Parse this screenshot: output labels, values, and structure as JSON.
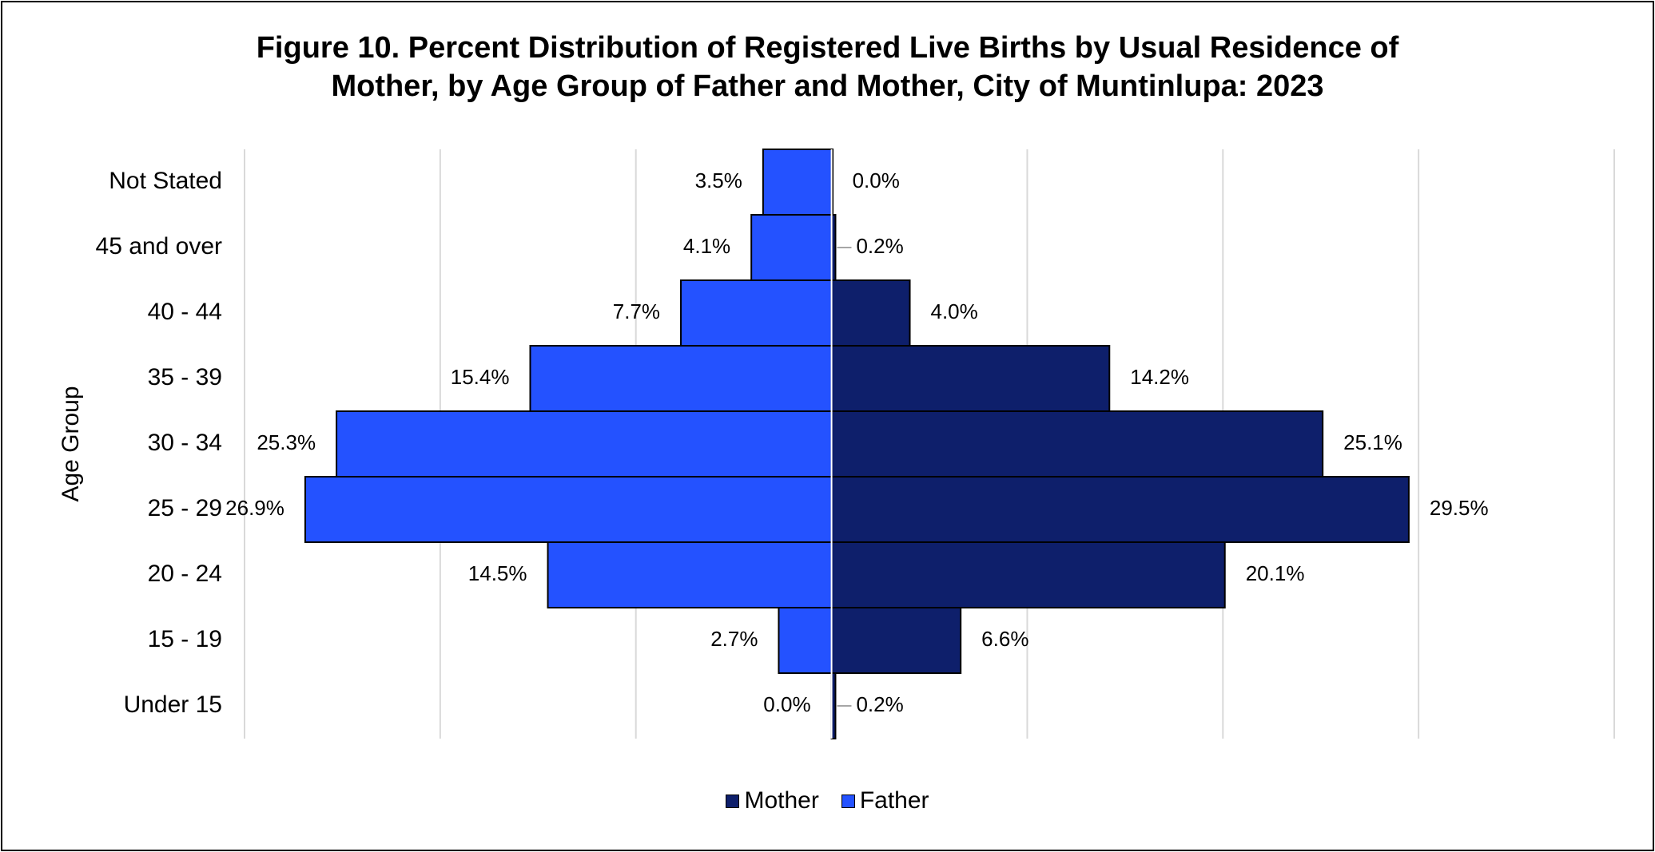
{
  "chart_data": {
    "type": "bar",
    "orientation": "horizontal-diverging",
    "title_lines": [
      "Figure 10. Percent Distribution of Registered Live Births by Usual Residence of",
      "Mother, by Age Group of Father and Mother, City of Muntinlupa: 2023"
    ],
    "ylabel": "Age Group",
    "xlabel": "",
    "categories": [
      "Not Stated",
      "45 and over",
      "40 - 44",
      "35 - 39",
      "30 - 34",
      "25 - 29",
      "20 - 24",
      "15 - 19",
      "Under 15"
    ],
    "series": [
      {
        "name": "Mother",
        "side": "right",
        "color": "#0e1f6b",
        "values": [
          0.0,
          0.2,
          4.0,
          14.2,
          25.1,
          29.5,
          20.1,
          6.6,
          0.2
        ],
        "labels": [
          "0.0%",
          "0.2%",
          "4.0%",
          "14.2%",
          "25.1%",
          "29.5%",
          "20.1%",
          "6.6%",
          "0.2%"
        ]
      },
      {
        "name": "Father",
        "side": "left",
        "color": "#2452ff",
        "values": [
          3.5,
          4.1,
          7.7,
          15.4,
          25.3,
          26.9,
          14.5,
          2.7,
          0.0
        ],
        "labels": [
          "3.5%",
          "4.1%",
          "7.7%",
          "15.4%",
          "25.3%",
          "26.9%",
          "14.5%",
          "2.7%",
          "0.0%"
        ]
      }
    ],
    "xlim": [
      -30,
      40
    ],
    "grid_step": 10,
    "grid": true,
    "legend_position": "bottom",
    "legend_order": [
      "Mother",
      "Father"
    ],
    "gridline_color": "#d9d9d9"
  }
}
